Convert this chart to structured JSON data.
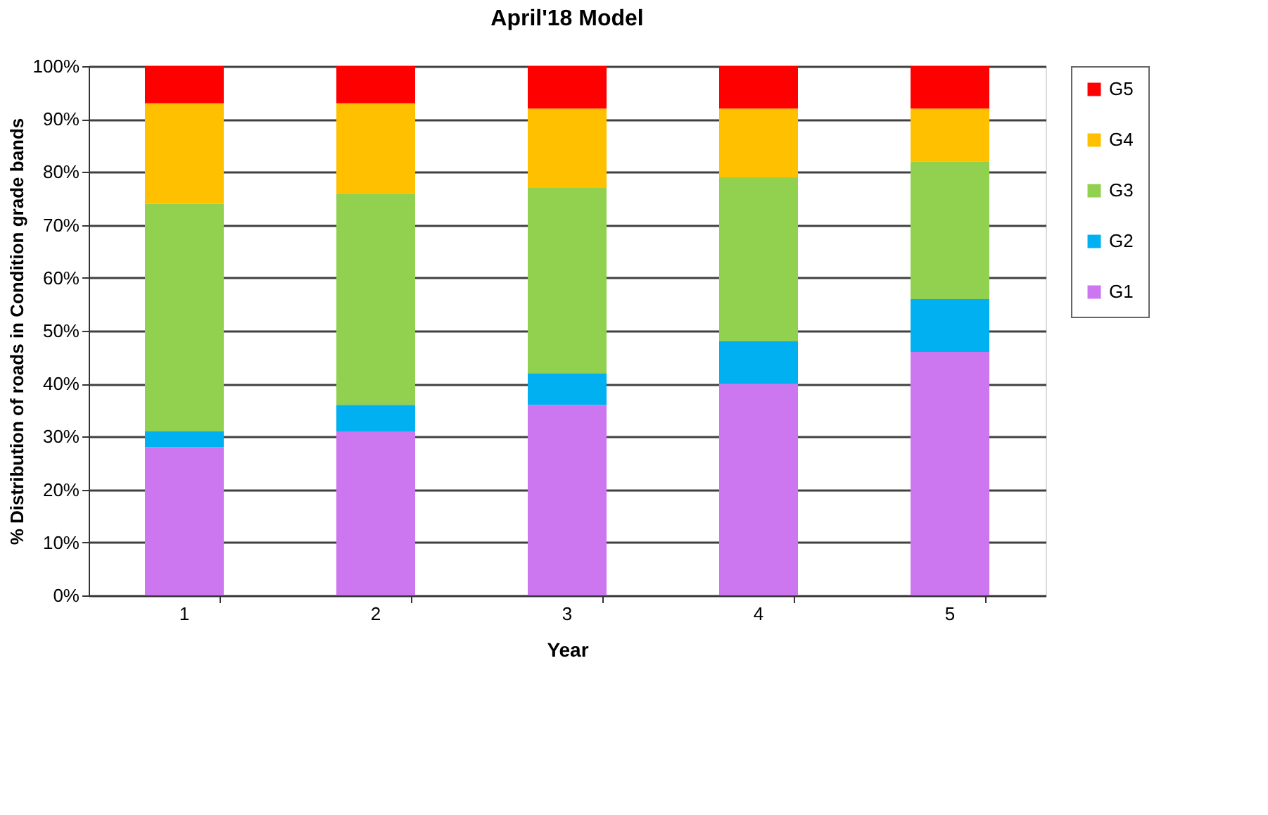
{
  "chart_data": {
    "type": "bar",
    "title": "April'18 Model",
    "xlabel": "Year",
    "ylabel": "% Distribution of roads in Condition grade bands",
    "categories": [
      "1",
      "2",
      "3",
      "4",
      "5"
    ],
    "stacked": true,
    "series": [
      {
        "name": "G1",
        "color": "#cc77f0",
        "values": [
          28,
          31,
          36,
          40,
          46
        ]
      },
      {
        "name": "G2",
        "color": "#00b0f0",
        "values": [
          3,
          5,
          6,
          8,
          10
        ]
      },
      {
        "name": "G3",
        "color": "#92d050",
        "values": [
          43,
          40,
          35,
          31,
          26
        ]
      },
      {
        "name": "G4",
        "color": "#ffc000",
        "values": [
          19,
          17,
          15,
          13,
          10
        ]
      },
      {
        "name": "G5",
        "color": "#ff0000",
        "values": [
          7,
          7,
          8,
          8,
          8
        ]
      }
    ],
    "ylim": [
      0,
      100
    ],
    "yticks": [
      {
        "value": 0,
        "label": "0%"
      },
      {
        "value": 10,
        "label": "10%"
      },
      {
        "value": 20,
        "label": "20%"
      },
      {
        "value": 30,
        "label": "30%"
      },
      {
        "value": 40,
        "label": "40%"
      },
      {
        "value": 50,
        "label": "50%"
      },
      {
        "value": 60,
        "label": "60%"
      },
      {
        "value": 70,
        "label": "70%"
      },
      {
        "value": 80,
        "label": "80%"
      },
      {
        "value": 90,
        "label": "90%"
      },
      {
        "value": 100,
        "label": "100%"
      }
    ],
    "grid": "y",
    "legend": "right"
  }
}
